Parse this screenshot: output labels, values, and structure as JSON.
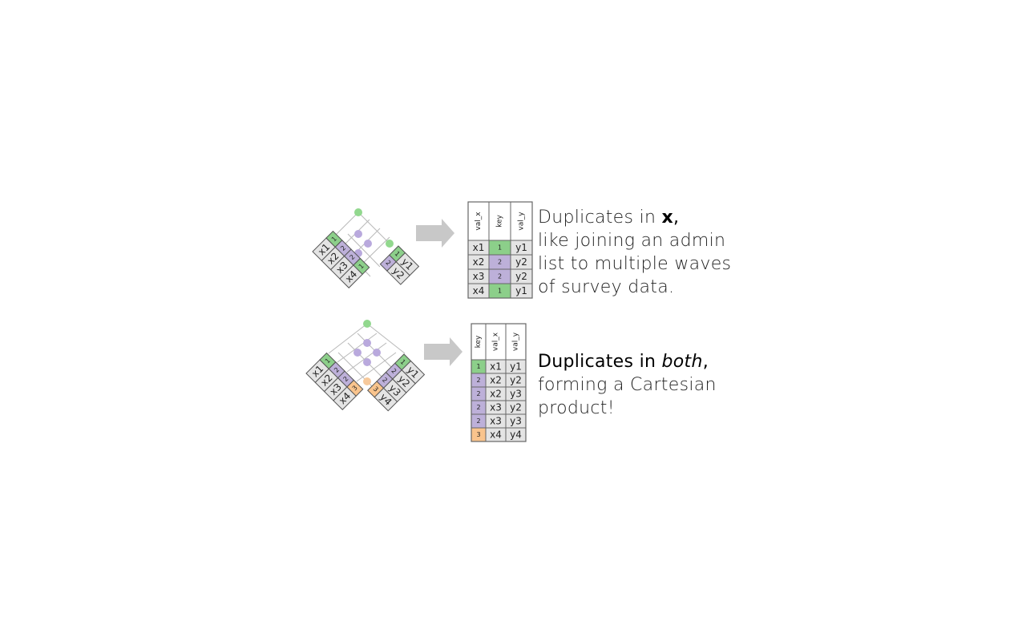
{
  "colors": {
    "green": "#8ccf8a",
    "purple": "#bdb0d9",
    "orange": "#f9c48d",
    "cell": "#e4e4e4",
    "arrow": "#c8c8c8",
    "grid": "#b8b8b8",
    "dot_green": "#92d88e",
    "dot_purple": "#b9a9dd",
    "dot_orange": "#f7c99b"
  },
  "panels": [
    {
      "id": "dup-x",
      "x_table": [
        {
          "val": "x1",
          "key": "1",
          "color": "green"
        },
        {
          "val": "x2",
          "key": "2",
          "color": "purple"
        },
        {
          "val": "x3",
          "key": "2",
          "color": "purple"
        },
        {
          "val": "x4",
          "key": "1",
          "color": "green"
        }
      ],
      "y_table": [
        {
          "key": "1",
          "val": "y1",
          "color": "green"
        },
        {
          "key": "2",
          "val": "y2",
          "color": "purple"
        }
      ],
      "dots": [
        "green",
        "purple",
        "purple",
        "green"
      ],
      "result": {
        "headers": [
          "val_x",
          "key",
          "val_y"
        ],
        "rows": [
          [
            "x1",
            "1",
            "y1",
            "green"
          ],
          [
            "x2",
            "2",
            "y2",
            "purple"
          ],
          [
            "x3",
            "2",
            "y2",
            "purple"
          ],
          [
            "x4",
            "1",
            "y1",
            "green"
          ]
        ]
      },
      "caption": {
        "prefix": "Duplicates in ",
        "highlight": "x",
        "suffix": ",",
        "lines": [
          "like joining an admin",
          "list to multiple waves",
          "of survey data."
        ]
      }
    },
    {
      "id": "dup-both",
      "x_table": [
        {
          "val": "x1",
          "key": "1",
          "color": "green"
        },
        {
          "val": "x2",
          "key": "2",
          "color": "purple"
        },
        {
          "val": "x3",
          "key": "2",
          "color": "purple"
        },
        {
          "val": "x4",
          "key": "3",
          "color": "orange"
        }
      ],
      "y_table": [
        {
          "key": "1",
          "val": "y1",
          "color": "green"
        },
        {
          "key": "2",
          "val": "y2",
          "color": "purple"
        },
        {
          "key": "2",
          "val": "y3",
          "color": "purple"
        },
        {
          "key": "3",
          "val": "y4",
          "color": "orange"
        }
      ],
      "dots": [
        "green",
        "purple",
        "purple",
        "purple",
        "purple",
        "orange"
      ],
      "result": {
        "headers": [
          "key",
          "val_x",
          "val_y"
        ],
        "rows": [
          [
            "1",
            "x1",
            "y1",
            "green"
          ],
          [
            "2",
            "x2",
            "y2",
            "purple"
          ],
          [
            "2",
            "x2",
            "y3",
            "purple"
          ],
          [
            "2",
            "x3",
            "y2",
            "purple"
          ],
          [
            "2",
            "x3",
            "y3",
            "purple"
          ],
          [
            "3",
            "x4",
            "y4",
            "orange"
          ]
        ]
      },
      "caption": {
        "prefix": "Duplicates in ",
        "highlight": "both",
        "suffix": ",",
        "lines": [
          "forming a Cartesian",
          "product!"
        ]
      }
    }
  ]
}
